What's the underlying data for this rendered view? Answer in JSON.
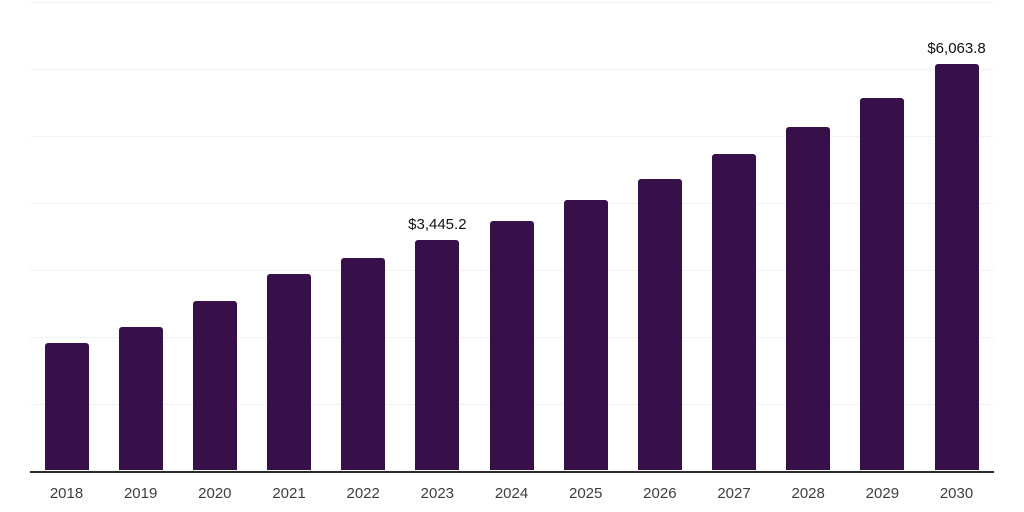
{
  "chart_data": {
    "type": "bar",
    "title": "",
    "xlabel": "",
    "ylabel": "",
    "categories": [
      "2018",
      "2019",
      "2020",
      "2021",
      "2022",
      "2023",
      "2024",
      "2025",
      "2026",
      "2027",
      "2028",
      "2029",
      "2030"
    ],
    "values": [
      1900,
      2140,
      2530,
      2930,
      3170,
      3445.2,
      3730,
      4040,
      4350,
      4720,
      5120,
      5560,
      6063.8
    ],
    "bar_labels": [
      "",
      "",
      "",
      "",
      "",
      "$3,445.2",
      "",
      "",
      "",
      "",
      "",
      "",
      "$6,063.8"
    ],
    "ylim": [
      0,
      7020
    ],
    "grid_step": 1000,
    "grid": true,
    "legend": false,
    "y_axis_tick_labels_visible": false,
    "colors": {
      "bar": "#371049",
      "grid": "#f2f2f2",
      "axis": "#2b2b2b",
      "tick_label": "#3d3d3d",
      "value_label": "#111111",
      "background": "#ffffff"
    }
  }
}
